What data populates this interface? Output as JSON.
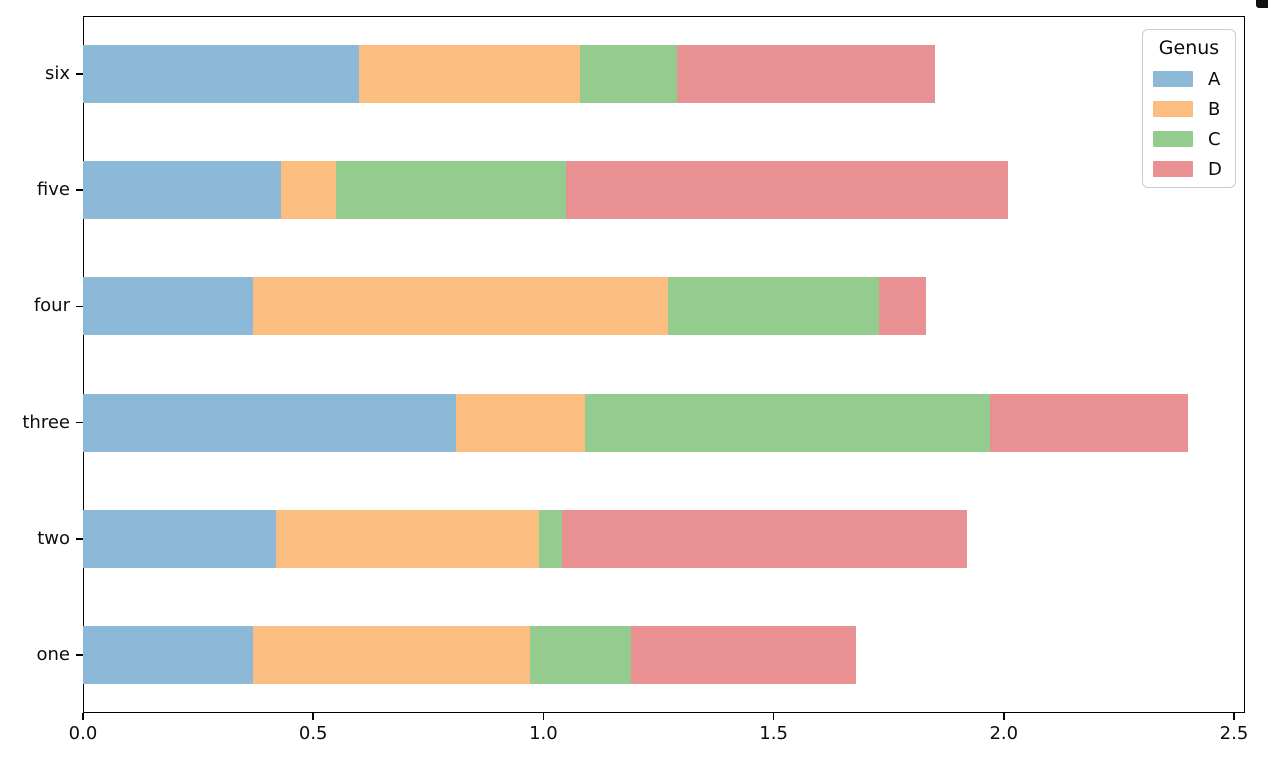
{
  "figure": {
    "background": "#ffffff",
    "text_color": "#0d0d0d",
    "spine_color": "#000000"
  },
  "chart_data": {
    "type": "bar",
    "orientation": "horizontal",
    "stacked": true,
    "title": "",
    "xlabel": "",
    "ylabel": "",
    "grid": false,
    "categories": [
      "one",
      "two",
      "three",
      "four",
      "five",
      "six"
    ],
    "categories_display_top_to_bottom": [
      "six",
      "five",
      "four",
      "three",
      "two",
      "one"
    ],
    "series": [
      {
        "name": "A",
        "color": "#8cb9d8",
        "values": [
          0.37,
          0.42,
          0.81,
          0.37,
          0.43,
          0.6
        ]
      },
      {
        "name": "B",
        "color": "#fcbd80",
        "values": [
          0.6,
          0.57,
          0.28,
          0.9,
          0.12,
          0.48
        ]
      },
      {
        "name": "C",
        "color": "#94cc8f",
        "values": [
          0.22,
          0.05,
          0.88,
          0.46,
          0.5,
          0.21
        ]
      },
      {
        "name": "D",
        "color": "#e99093",
        "values": [
          0.49,
          0.88,
          0.43,
          0.1,
          0.96,
          0.56
        ]
      }
    ],
    "stack_totals": [
      1.68,
      1.92,
      2.4,
      1.83,
      2.01,
      1.85
    ],
    "xlim": [
      0,
      2.52
    ],
    "x_ticks": [
      "0.0",
      "0.5",
      "1.0",
      "1.5",
      "2.0",
      "2.5"
    ],
    "x_tick_values": [
      0,
      0.5,
      1.0,
      1.5,
      2.0,
      2.5
    ],
    "bar_height_fraction": 0.5,
    "legend": {
      "title": "Genus",
      "position": "upper right",
      "entries": [
        "A",
        "B",
        "C",
        "D"
      ]
    }
  }
}
